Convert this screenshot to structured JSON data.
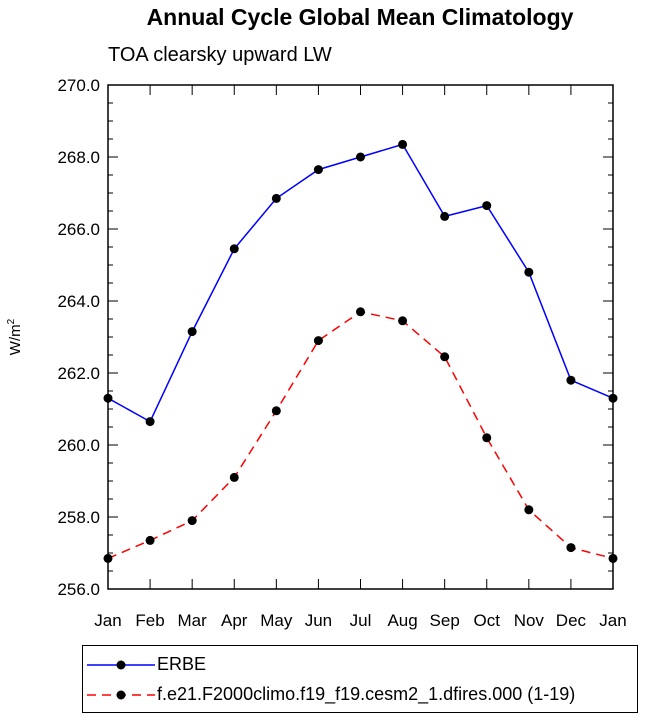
{
  "chart_data": {
    "type": "line",
    "title": "Annual Cycle Global Mean Climatology",
    "subtitle": "TOA clearsky upward LW",
    "xlabel": "",
    "ylabel": "W/m",
    "ylabel_superscript": "2",
    "categories": [
      "Jan",
      "Feb",
      "Mar",
      "Apr",
      "May",
      "Jun",
      "Jul",
      "Aug",
      "Sep",
      "Oct",
      "Nov",
      "Dec",
      "Jan"
    ],
    "ylim": [
      256.0,
      270.0
    ],
    "yticks": [
      "256.0",
      "258.0",
      "260.0",
      "262.0",
      "264.0",
      "266.0",
      "268.0",
      "270.0"
    ],
    "series": [
      {
        "name": "ERBE",
        "color": "#0000ff",
        "dash": "solid",
        "values": [
          261.3,
          260.65,
          263.15,
          265.45,
          266.85,
          267.65,
          268.0,
          268.35,
          266.35,
          266.65,
          264.8,
          261.8,
          261.3
        ]
      },
      {
        "name": "f.e21.F2000climo.f19_f19.cesm2_1.dfires.000 (1-19)",
        "color": "#ff0000",
        "dash": "dashed",
        "values": [
          256.85,
          257.35,
          257.9,
          259.1,
          260.95,
          262.9,
          263.7,
          263.45,
          262.45,
          260.2,
          258.2,
          257.15,
          256.85
        ]
      }
    ]
  }
}
